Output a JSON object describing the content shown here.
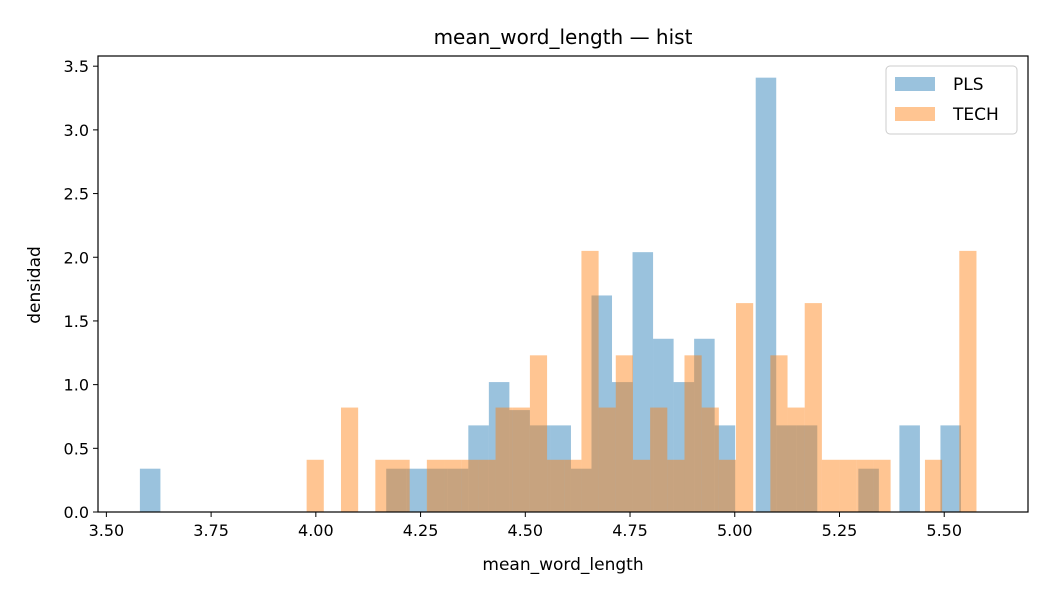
{
  "chart_data": {
    "type": "histogram",
    "title": "mean_word_length — hist",
    "xlabel": "mean_word_length",
    "ylabel": "densidad",
    "xlim": [
      3.48,
      5.7
    ],
    "ylim": [
      0,
      3.58
    ],
    "xticks": [
      "3.50",
      "3.75",
      "4.00",
      "4.25",
      "4.50",
      "4.75",
      "5.00",
      "5.25",
      "5.50"
    ],
    "yticks": [
      "0.0",
      "0.5",
      "1.0",
      "1.5",
      "2.0",
      "2.5",
      "3.0",
      "3.5"
    ],
    "legend_position": "top-right",
    "series": [
      {
        "name": "PLS",
        "color": "#1f77b4",
        "opacity": 0.45,
        "bins": [
          {
            "x0": 3.58,
            "x1": 3.629,
            "y": 0.34
          },
          {
            "x0": 4.168,
            "x1": 4.217,
            "y": 0.34
          },
          {
            "x0": 4.217,
            "x1": 4.266,
            "y": 0.34
          },
          {
            "x0": 4.266,
            "x1": 4.315,
            "y": 0.34
          },
          {
            "x0": 4.315,
            "x1": 4.364,
            "y": 0.34
          },
          {
            "x0": 4.364,
            "x1": 4.413,
            "y": 0.68
          },
          {
            "x0": 4.413,
            "x1": 4.462,
            "y": 1.02
          },
          {
            "x0": 4.462,
            "x1": 4.511,
            "y": 0.8
          },
          {
            "x0": 4.511,
            "x1": 4.56,
            "y": 0.68
          },
          {
            "x0": 4.56,
            "x1": 4.609,
            "y": 0.68
          },
          {
            "x0": 4.609,
            "x1": 4.658,
            "y": 0.34
          },
          {
            "x0": 4.658,
            "x1": 4.707,
            "y": 1.7
          },
          {
            "x0": 4.707,
            "x1": 4.756,
            "y": 1.02
          },
          {
            "x0": 4.756,
            "x1": 4.805,
            "y": 2.04
          },
          {
            "x0": 4.805,
            "x1": 4.854,
            "y": 1.36
          },
          {
            "x0": 4.854,
            "x1": 4.903,
            "y": 1.02
          },
          {
            "x0": 4.903,
            "x1": 4.952,
            "y": 1.36
          },
          {
            "x0": 4.952,
            "x1": 5.001,
            "y": 0.68
          },
          {
            "x0": 5.05,
            "x1": 5.099,
            "y": 3.41
          },
          {
            "x0": 5.099,
            "x1": 5.148,
            "y": 0.68
          },
          {
            "x0": 5.148,
            "x1": 5.197,
            "y": 0.68
          },
          {
            "x0": 5.295,
            "x1": 5.344,
            "y": 0.34
          },
          {
            "x0": 5.393,
            "x1": 5.442,
            "y": 0.68
          },
          {
            "x0": 5.491,
            "x1": 5.54,
            "y": 0.68
          }
        ]
      },
      {
        "name": "TECH",
        "color": "#ff7f0e",
        "opacity": 0.45,
        "bins": [
          {
            "x0": 3.978,
            "x1": 4.019,
            "y": 0.41
          },
          {
            "x0": 4.06,
            "x1": 4.101,
            "y": 0.82
          },
          {
            "x0": 4.142,
            "x1": 4.183,
            "y": 0.41
          },
          {
            "x0": 4.183,
            "x1": 4.224,
            "y": 0.41
          },
          {
            "x0": 4.265,
            "x1": 4.306,
            "y": 0.41
          },
          {
            "x0": 4.306,
            "x1": 4.347,
            "y": 0.41
          },
          {
            "x0": 4.347,
            "x1": 4.388,
            "y": 0.41
          },
          {
            "x0": 4.388,
            "x1": 4.429,
            "y": 0.41
          },
          {
            "x0": 4.429,
            "x1": 4.47,
            "y": 0.82
          },
          {
            "x0": 4.47,
            "x1": 4.511,
            "y": 0.82
          },
          {
            "x0": 4.511,
            "x1": 4.552,
            "y": 1.23
          },
          {
            "x0": 4.552,
            "x1": 4.593,
            "y": 0.41
          },
          {
            "x0": 4.593,
            "x1": 4.634,
            "y": 0.41
          },
          {
            "x0": 4.634,
            "x1": 4.675,
            "y": 2.05
          },
          {
            "x0": 4.675,
            "x1": 4.716,
            "y": 0.82
          },
          {
            "x0": 4.716,
            "x1": 4.757,
            "y": 1.23
          },
          {
            "x0": 4.757,
            "x1": 4.798,
            "y": 0.41
          },
          {
            "x0": 4.798,
            "x1": 4.839,
            "y": 0.82
          },
          {
            "x0": 4.839,
            "x1": 4.88,
            "y": 0.41
          },
          {
            "x0": 4.88,
            "x1": 4.921,
            "y": 1.23
          },
          {
            "x0": 4.921,
            "x1": 4.962,
            "y": 0.82
          },
          {
            "x0": 4.962,
            "x1": 5.003,
            "y": 0.41
          },
          {
            "x0": 5.003,
            "x1": 5.044,
            "y": 1.64
          },
          {
            "x0": 5.085,
            "x1": 5.126,
            "y": 1.23
          },
          {
            "x0": 5.126,
            "x1": 5.167,
            "y": 0.82
          },
          {
            "x0": 5.167,
            "x1": 5.208,
            "y": 1.64
          },
          {
            "x0": 5.208,
            "x1": 5.249,
            "y": 0.41
          },
          {
            "x0": 5.249,
            "x1": 5.29,
            "y": 0.41
          },
          {
            "x0": 5.29,
            "x1": 5.331,
            "y": 0.41
          },
          {
            "x0": 5.331,
            "x1": 5.372,
            "y": 0.41
          },
          {
            "x0": 5.454,
            "x1": 5.495,
            "y": 0.41
          },
          {
            "x0": 5.536,
            "x1": 5.577,
            "y": 2.05
          }
        ]
      }
    ]
  }
}
